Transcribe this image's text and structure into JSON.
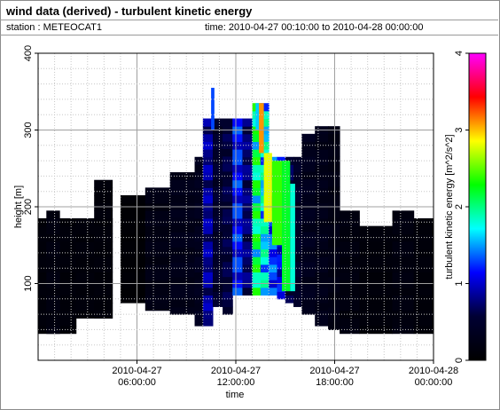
{
  "header": {
    "title": "wind data (derived) - turbulent kinetic energy",
    "station_label": "station : METEOCAT1",
    "time_label": "time: 2010-04-27 00:10:00 to 2010-04-28 00:00:00"
  },
  "chart_data": {
    "type": "heatmap",
    "title": "wind data (derived) - turbulent kinetic energy",
    "xlabel": "time",
    "ylabel": "height [m]",
    "colorbar_label": "turbulent kinetic energy [m^2/s^2]",
    "xlim": [
      0,
      24
    ],
    "ylim": [
      0,
      400
    ],
    "clim": [
      0,
      4
    ],
    "colormap": [
      "#000000",
      "#000033",
      "#0000ff",
      "#00ffff",
      "#00ff00",
      "#ffff00",
      "#ff0000",
      "#ff00ff"
    ],
    "grid": true,
    "x_ticks": [
      {
        "hour": 6,
        "label1": "2010-04-27",
        "label2": "06:00:00"
      },
      {
        "hour": 12,
        "label1": "2010-04-27",
        "label2": "12:00:00"
      },
      {
        "hour": 18,
        "label1": "2010-04-27",
        "label2": "18:00:00"
      },
      {
        "hour": 24,
        "label1": "2010-04-28",
        "label2": "00:00:00"
      }
    ],
    "y_ticks": [
      100,
      200,
      300,
      400
    ],
    "colorbar_ticks": [
      0,
      1,
      2,
      3,
      4
    ],
    "columns": [
      {
        "t0": 0.0,
        "t1": 2.3,
        "bottom": 35,
        "top": 185,
        "tke": 0.1
      },
      {
        "t0": 0.5,
        "t1": 1.3,
        "bottom": 35,
        "top": 195,
        "tke": 0.15
      },
      {
        "t0": 2.3,
        "t1": 4.5,
        "bottom": 55,
        "top": 185,
        "tke": 0.1
      },
      {
        "t0": 3.4,
        "t1": 4.5,
        "bottom": 55,
        "top": 235,
        "tke": 0.1
      },
      {
        "t0": 4.5,
        "t1": 5.0,
        "bottom": 230,
        "top": 230,
        "tke": 0.0
      },
      {
        "t0": 5.0,
        "t1": 6.5,
        "bottom": 75,
        "top": 215,
        "tke": 0.05
      },
      {
        "t0": 6.5,
        "t1": 8.0,
        "bottom": 65,
        "top": 225,
        "tke": 0.2
      },
      {
        "t0": 8.0,
        "t1": 9.5,
        "bottom": 60,
        "top": 245,
        "tke": 0.25
      },
      {
        "t0": 9.5,
        "t1": 10.0,
        "bottom": 45,
        "top": 265,
        "tke": 0.3
      },
      {
        "t0": 10.0,
        "t1": 10.6,
        "bottom": 45,
        "top": 315,
        "tke": 0.8
      },
      {
        "t0": 10.6,
        "t1": 11.2,
        "bottom": 70,
        "top": 315,
        "tke": 0.45
      },
      {
        "t0": 11.2,
        "t1": 11.8,
        "bottom": 60,
        "top": 315,
        "tke": 0.55
      },
      {
        "t0": 11.8,
        "t1": 12.4,
        "bottom": 85,
        "top": 315,
        "tke": 1.1
      },
      {
        "t0": 12.4,
        "t1": 13.0,
        "bottom": 85,
        "top": 315,
        "tke": 0.7
      },
      {
        "t0": 13.0,
        "t1": 13.5,
        "bottom": 85,
        "top": 335,
        "tke": 1.9
      },
      {
        "t0": 13.5,
        "t1": 14.0,
        "bottom": 85,
        "top": 335,
        "tke": 1.6
      },
      {
        "t0": 14.0,
        "t1": 14.5,
        "bottom": 85,
        "top": 265,
        "tke": 1.2
      },
      {
        "t0": 14.5,
        "t1": 15.0,
        "bottom": 80,
        "top": 265,
        "tke": 1.0
      },
      {
        "t0": 15.0,
        "t1": 15.5,
        "bottom": 75,
        "top": 265,
        "tke": 0.6
      },
      {
        "t0": 15.5,
        "t1": 16.0,
        "bottom": 70,
        "top": 265,
        "tke": 0.4
      },
      {
        "t0": 16.0,
        "t1": 16.8,
        "bottom": 60,
        "top": 295,
        "tke": 0.3
      },
      {
        "t0": 16.8,
        "t1": 17.6,
        "bottom": 45,
        "top": 305,
        "tke": 0.25
      },
      {
        "t0": 17.6,
        "t1": 18.3,
        "bottom": 40,
        "top": 305,
        "tke": 0.2
      },
      {
        "t0": 18.3,
        "t1": 19.5,
        "bottom": 35,
        "top": 195,
        "tke": 0.15
      },
      {
        "t0": 19.5,
        "t1": 21.5,
        "bottom": 35,
        "top": 175,
        "tke": 0.1
      },
      {
        "t0": 21.5,
        "t1": 22.8,
        "bottom": 35,
        "top": 195,
        "tke": 0.15
      },
      {
        "t0": 22.8,
        "t1": 24.0,
        "bottom": 35,
        "top": 185,
        "tke": 0.1
      }
    ],
    "overlay_patches": [
      {
        "t0": 10.5,
        "t1": 10.7,
        "bottom": 300,
        "top": 355,
        "tke": 1.3
      },
      {
        "t0": 13.2,
        "t1": 13.4,
        "bottom": 300,
        "top": 335,
        "tke": 1.6
      },
      {
        "t0": 13.4,
        "t1": 13.7,
        "bottom": 270,
        "top": 335,
        "tke": 3.1
      },
      {
        "t0": 13.7,
        "t1": 14.2,
        "bottom": 180,
        "top": 270,
        "tke": 2.8
      },
      {
        "t0": 14.2,
        "t1": 14.8,
        "bottom": 150,
        "top": 260,
        "tke": 2.4
      },
      {
        "t0": 14.8,
        "t1": 15.3,
        "bottom": 90,
        "top": 260,
        "tke": 2.2
      },
      {
        "t0": 15.3,
        "t1": 15.6,
        "bottom": 90,
        "top": 230,
        "tke": 1.8
      }
    ]
  }
}
